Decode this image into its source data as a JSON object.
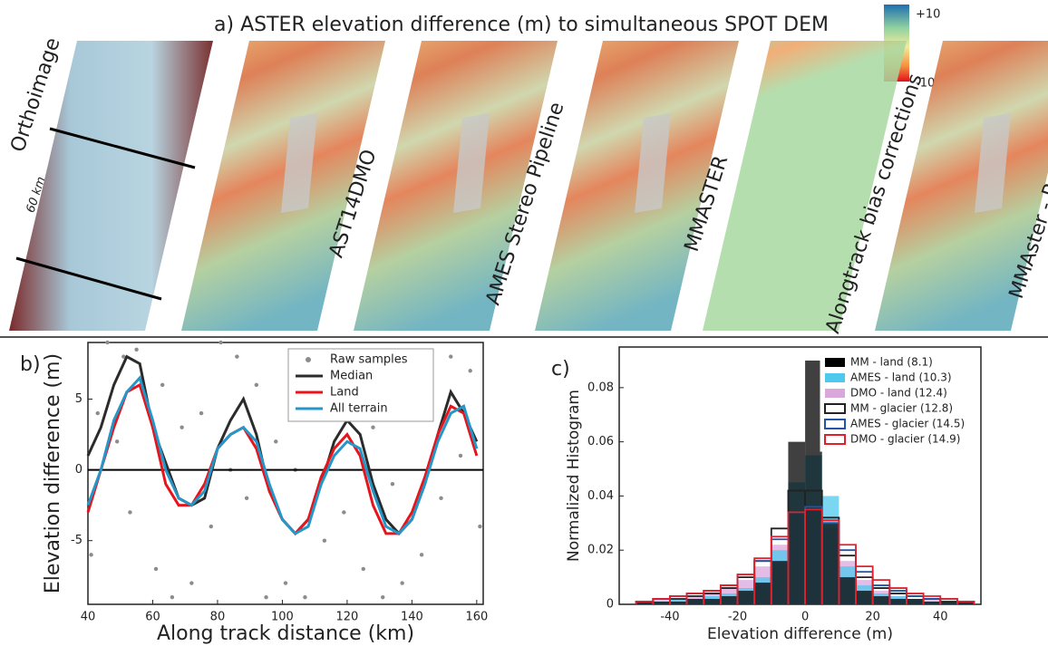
{
  "panel_a": {
    "title": "a) ASTER elevation difference (m) to simultaneous SPOT DEM",
    "colorbar": {
      "max_label": "+10",
      "min_label": "-10"
    },
    "scale_label": "60 km",
    "strips": [
      "Orthoimage",
      "AST14DMO",
      "AMES Stereo Pipeline",
      "MMASTER",
      "Alongtrack bias corrections",
      "MMAster - Post proc"
    ]
  },
  "chart_data": [
    {
      "type": "line",
      "panel_label": "b)",
      "x_label": "Along track distance (km)",
      "y_label": "Elevation difference (m)",
      "xlim": [
        40,
        162
      ],
      "ylim": [
        -9.5,
        9
      ],
      "xticks": [
        40,
        60,
        80,
        100,
        120,
        140,
        160
      ],
      "yticks": [
        -5,
        0,
        5
      ],
      "reference_line": 0,
      "x": [
        40,
        44,
        48,
        52,
        56,
        60,
        64,
        68,
        72,
        76,
        80,
        84,
        88,
        92,
        96,
        100,
        104,
        108,
        112,
        116,
        120,
        124,
        128,
        132,
        136,
        140,
        144,
        148,
        152,
        156,
        160
      ],
      "series": [
        {
          "name": "Raw samples",
          "color": "#8c8c8c",
          "style": "points",
          "x": [
            41,
            43,
            46,
            49,
            51,
            53,
            55,
            58,
            61,
            63,
            66,
            69,
            72,
            75,
            78,
            81,
            84,
            86,
            89,
            92,
            95,
            98,
            101,
            104,
            107,
            110,
            113,
            116,
            119,
            122,
            125,
            128,
            131,
            134,
            137,
            140,
            143,
            146,
            149,
            152,
            155,
            158,
            161
          ],
          "values": [
            -6,
            4,
            9,
            2,
            8,
            -3,
            8.5,
            5,
            -7,
            6,
            -9,
            3,
            -8,
            4,
            -4,
            9,
            0,
            8,
            -2,
            6,
            -9,
            2,
            -8,
            0,
            -9,
            5,
            -5,
            7,
            -3,
            8,
            -7,
            3,
            -9,
            -1,
            -8,
            4,
            -6,
            6,
            -2,
            8,
            1,
            7,
            -4
          ]
        },
        {
          "name": "Median",
          "color": "#2b2b2b",
          "style": "line",
          "values": [
            1,
            3,
            6,
            8,
            7.5,
            3,
            0.5,
            -2,
            -2.5,
            -2,
            1.5,
            3.5,
            5,
            2.5,
            -1.5,
            -3.5,
            -4.5,
            -3.5,
            -1,
            2,
            3.5,
            2.5,
            -1,
            -3.5,
            -4.5,
            -3.5,
            -1,
            2.5,
            5.5,
            4,
            2
          ]
        },
        {
          "name": "Land",
          "color": "#e8141c",
          "style": "line",
          "values": [
            -3,
            0,
            3,
            5.5,
            6,
            3,
            -1,
            -2.5,
            -2.5,
            -1,
            1.5,
            2.5,
            3,
            1.5,
            -1.5,
            -3.5,
            -4.5,
            -3.5,
            -0.5,
            1.5,
            2.5,
            1,
            -2.5,
            -4.5,
            -4.5,
            -3,
            -0.5,
            2.5,
            4.5,
            4,
            1
          ]
        },
        {
          "name": "All terrain",
          "color": "#2596c8",
          "style": "line",
          "values": [
            -2.5,
            0,
            3.5,
            5.5,
            6.5,
            3.5,
            0,
            -2,
            -2.5,
            -1.5,
            1.5,
            2.5,
            3,
            2,
            -1,
            -3.5,
            -4.5,
            -4,
            -1,
            1,
            2,
            1.5,
            -1.5,
            -4,
            -4.5,
            -3.5,
            -1,
            2,
            4,
            4.5,
            1.5
          ]
        }
      ]
    },
    {
      "type": "histogram",
      "panel_label": "c)",
      "x_label": "Elevation difference (m)",
      "y_label": "Normalized Histogram",
      "xlim": [
        -55,
        52
      ],
      "ylim": [
        0,
        0.095
      ],
      "xticks": [
        -40,
        -20,
        0,
        20,
        40
      ],
      "yticks": [
        0,
        0.02,
        0.04,
        0.06,
        0.08
      ],
      "bins": [
        -50,
        -45,
        -40,
        -35,
        -30,
        -25,
        -20,
        -15,
        -10,
        -5,
        0,
        5,
        10,
        15,
        20,
        25,
        30,
        35,
        40,
        45,
        50
      ],
      "series": [
        {
          "name": "DMO - land (12.4)",
          "color": "#d9a7dc",
          "style": "filled",
          "values": [
            0.001,
            0.002,
            0.002,
            0.003,
            0.004,
            0.006,
            0.009,
            0.014,
            0.022,
            0.034,
            0.036,
            0.028,
            0.016,
            0.009,
            0.005,
            0.003,
            0.002,
            0.002,
            0.001,
            0.001
          ]
        },
        {
          "name": "AMES - land (10.3)",
          "color": "#4fc8ee",
          "style": "filled",
          "values": [
            0.001,
            0.001,
            0.002,
            0.002,
            0.003,
            0.004,
            0.006,
            0.01,
            0.02,
            0.045,
            0.055,
            0.04,
            0.014,
            0.007,
            0.004,
            0.003,
            0.002,
            0.001,
            0.001,
            0.001
          ]
        },
        {
          "name": "MM - land (8.1)",
          "color": "#000000",
          "style": "filled",
          "values": [
            0.001,
            0.001,
            0.001,
            0.002,
            0.002,
            0.003,
            0.005,
            0.008,
            0.016,
            0.06,
            0.09,
            0.03,
            0.01,
            0.005,
            0.003,
            0.002,
            0.002,
            0.001,
            0.001,
            0.001
          ]
        },
        {
          "name": "MM - glacier (12.8)",
          "color": "#222222",
          "style": "step",
          "values": [
            0.001,
            0.002,
            0.002,
            0.003,
            0.004,
            0.006,
            0.01,
            0.016,
            0.028,
            0.042,
            0.042,
            0.032,
            0.018,
            0.01,
            0.006,
            0.004,
            0.003,
            0.002,
            0.001,
            0.001
          ]
        },
        {
          "name": "AMES - glacier (14.5)",
          "color": "#2255aa",
          "style": "step",
          "values": [
            0.001,
            0.002,
            0.003,
            0.004,
            0.005,
            0.007,
            0.011,
            0.016,
            0.024,
            0.034,
            0.036,
            0.03,
            0.02,
            0.012,
            0.007,
            0.005,
            0.003,
            0.002,
            0.002,
            0.001
          ]
        },
        {
          "name": "DMO - glacier (14.9)",
          "color": "#e0202a",
          "style": "step",
          "values": [
            0.001,
            0.002,
            0.003,
            0.004,
            0.005,
            0.007,
            0.011,
            0.017,
            0.025,
            0.034,
            0.035,
            0.031,
            0.022,
            0.014,
            0.009,
            0.006,
            0.004,
            0.003,
            0.002,
            0.001
          ]
        }
      ]
    }
  ]
}
